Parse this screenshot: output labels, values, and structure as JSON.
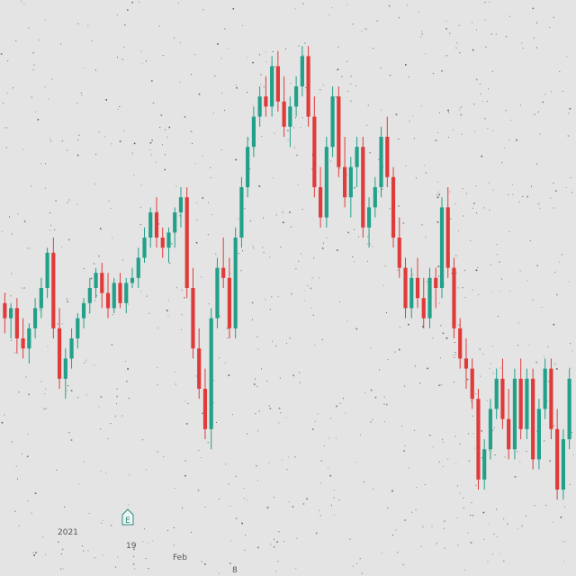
{
  "colors": {
    "up": "#22a08a",
    "down": "#e03b3b",
    "background": "#e4e4e4",
    "noise": "#3a3a3a"
  },
  "chart_data": {
    "type": "candlestick",
    "title": "",
    "xlabel": "",
    "ylabel": "",
    "ylim": [
      0,
      100
    ],
    "grid": false,
    "legend": "none",
    "x_tick_labels": [
      "2021",
      "19",
      "Feb",
      "8"
    ],
    "event_marker": {
      "glyph": "E",
      "label_near": "19"
    },
    "candles": [
      {
        "o": 47,
        "h": 49,
        "l": 41,
        "c": 44
      },
      {
        "o": 44,
        "h": 47,
        "l": 40,
        "c": 46
      },
      {
        "o": 46,
        "h": 48,
        "l": 37,
        "c": 40
      },
      {
        "o": 40,
        "h": 44,
        "l": 36,
        "c": 38
      },
      {
        "o": 38,
        "h": 43,
        "l": 35,
        "c": 42
      },
      {
        "o": 42,
        "h": 48,
        "l": 40,
        "c": 46
      },
      {
        "o": 46,
        "h": 52,
        "l": 44,
        "c": 50
      },
      {
        "o": 50,
        "h": 58,
        "l": 48,
        "c": 57
      },
      {
        "o": 57,
        "h": 60,
        "l": 40,
        "c": 42
      },
      {
        "o": 42,
        "h": 46,
        "l": 30,
        "c": 32
      },
      {
        "o": 32,
        "h": 38,
        "l": 28,
        "c": 36
      },
      {
        "o": 36,
        "h": 42,
        "l": 34,
        "c": 40
      },
      {
        "o": 40,
        "h": 45,
        "l": 38,
        "c": 44
      },
      {
        "o": 44,
        "h": 48,
        "l": 42,
        "c": 47
      },
      {
        "o": 47,
        "h": 52,
        "l": 45,
        "c": 50
      },
      {
        "o": 50,
        "h": 54,
        "l": 48,
        "c": 53
      },
      {
        "o": 53,
        "h": 55,
        "l": 46,
        "c": 49
      },
      {
        "o": 49,
        "h": 53,
        "l": 44,
        "c": 46
      },
      {
        "o": 46,
        "h": 52,
        "l": 45,
        "c": 51
      },
      {
        "o": 51,
        "h": 53,
        "l": 46,
        "c": 47
      },
      {
        "o": 47,
        "h": 52,
        "l": 45,
        "c": 51
      },
      {
        "o": 51,
        "h": 54,
        "l": 50,
        "c": 52
      },
      {
        "o": 52,
        "h": 58,
        "l": 50,
        "c": 56
      },
      {
        "o": 56,
        "h": 62,
        "l": 55,
        "c": 60
      },
      {
        "o": 60,
        "h": 66,
        "l": 58,
        "c": 65
      },
      {
        "o": 65,
        "h": 68,
        "l": 58,
        "c": 60
      },
      {
        "o": 60,
        "h": 62,
        "l": 56,
        "c": 58
      },
      {
        "o": 58,
        "h": 62,
        "l": 55,
        "c": 61
      },
      {
        "o": 61,
        "h": 66,
        "l": 58,
        "c": 65
      },
      {
        "o": 65,
        "h": 70,
        "l": 62,
        "c": 68
      },
      {
        "o": 68,
        "h": 70,
        "l": 48,
        "c": 50
      },
      {
        "o": 50,
        "h": 54,
        "l": 36,
        "c": 38
      },
      {
        "o": 38,
        "h": 42,
        "l": 28,
        "c": 30
      },
      {
        "o": 30,
        "h": 34,
        "l": 20,
        "c": 22
      },
      {
        "o": 22,
        "h": 46,
        "l": 18,
        "c": 44
      },
      {
        "o": 44,
        "h": 56,
        "l": 42,
        "c": 54
      },
      {
        "o": 54,
        "h": 60,
        "l": 50,
        "c": 52
      },
      {
        "o": 52,
        "h": 56,
        "l": 40,
        "c": 42
      },
      {
        "o": 42,
        "h": 62,
        "l": 40,
        "c": 60
      },
      {
        "o": 60,
        "h": 72,
        "l": 58,
        "c": 70
      },
      {
        "o": 70,
        "h": 80,
        "l": 68,
        "c": 78
      },
      {
        "o": 78,
        "h": 86,
        "l": 76,
        "c": 84
      },
      {
        "o": 84,
        "h": 90,
        "l": 82,
        "c": 88
      },
      {
        "o": 88,
        "h": 92,
        "l": 84,
        "c": 86
      },
      {
        "o": 86,
        "h": 96,
        "l": 84,
        "c": 94
      },
      {
        "o": 94,
        "h": 97,
        "l": 85,
        "c": 87
      },
      {
        "o": 87,
        "h": 92,
        "l": 80,
        "c": 82
      },
      {
        "o": 82,
        "h": 88,
        "l": 78,
        "c": 86
      },
      {
        "o": 86,
        "h": 92,
        "l": 84,
        "c": 90
      },
      {
        "o": 90,
        "h": 98,
        "l": 88,
        "c": 96
      },
      {
        "o": 96,
        "h": 98,
        "l": 82,
        "c": 84
      },
      {
        "o": 84,
        "h": 88,
        "l": 68,
        "c": 70
      },
      {
        "o": 70,
        "h": 74,
        "l": 62,
        "c": 64
      },
      {
        "o": 64,
        "h": 80,
        "l": 62,
        "c": 78
      },
      {
        "o": 78,
        "h": 90,
        "l": 76,
        "c": 88
      },
      {
        "o": 88,
        "h": 90,
        "l": 72,
        "c": 74
      },
      {
        "o": 74,
        "h": 80,
        "l": 66,
        "c": 68
      },
      {
        "o": 68,
        "h": 76,
        "l": 64,
        "c": 74
      },
      {
        "o": 74,
        "h": 80,
        "l": 70,
        "c": 78
      },
      {
        "o": 78,
        "h": 80,
        "l": 60,
        "c": 62
      },
      {
        "o": 62,
        "h": 68,
        "l": 58,
        "c": 66
      },
      {
        "o": 66,
        "h": 72,
        "l": 64,
        "c": 70
      },
      {
        "o": 70,
        "h": 82,
        "l": 68,
        "c": 80
      },
      {
        "o": 80,
        "h": 84,
        "l": 70,
        "c": 72
      },
      {
        "o": 72,
        "h": 74,
        "l": 58,
        "c": 60
      },
      {
        "o": 60,
        "h": 64,
        "l": 52,
        "c": 54
      },
      {
        "o": 54,
        "h": 56,
        "l": 44,
        "c": 46
      },
      {
        "o": 46,
        "h": 54,
        "l": 44,
        "c": 52
      },
      {
        "o": 52,
        "h": 56,
        "l": 46,
        "c": 48
      },
      {
        "o": 48,
        "h": 52,
        "l": 42,
        "c": 44
      },
      {
        "o": 44,
        "h": 54,
        "l": 42,
        "c": 52
      },
      {
        "o": 52,
        "h": 54,
        "l": 46,
        "c": 50
      },
      {
        "o": 50,
        "h": 68,
        "l": 48,
        "c": 66
      },
      {
        "o": 66,
        "h": 70,
        "l": 52,
        "c": 54
      },
      {
        "o": 54,
        "h": 56,
        "l": 40,
        "c": 42
      },
      {
        "o": 42,
        "h": 44,
        "l": 34,
        "c": 36
      },
      {
        "o": 36,
        "h": 40,
        "l": 30,
        "c": 34
      },
      {
        "o": 34,
        "h": 36,
        "l": 26,
        "c": 28
      },
      {
        "o": 28,
        "h": 30,
        "l": 10,
        "c": 12
      },
      {
        "o": 12,
        "h": 20,
        "l": 10,
        "c": 18
      },
      {
        "o": 18,
        "h": 28,
        "l": 16,
        "c": 26
      },
      {
        "o": 26,
        "h": 34,
        "l": 24,
        "c": 32
      },
      {
        "o": 32,
        "h": 36,
        "l": 22,
        "c": 24
      },
      {
        "o": 24,
        "h": 30,
        "l": 16,
        "c": 18
      },
      {
        "o": 18,
        "h": 34,
        "l": 16,
        "c": 32
      },
      {
        "o": 32,
        "h": 36,
        "l": 20,
        "c": 22
      },
      {
        "o": 22,
        "h": 34,
        "l": 20,
        "c": 32
      },
      {
        "o": 32,
        "h": 34,
        "l": 14,
        "c": 16
      },
      {
        "o": 16,
        "h": 28,
        "l": 14,
        "c": 26
      },
      {
        "o": 26,
        "h": 36,
        "l": 24,
        "c": 34
      },
      {
        "o": 34,
        "h": 36,
        "l": 20,
        "c": 22
      },
      {
        "o": 22,
        "h": 26,
        "l": 8,
        "c": 10
      },
      {
        "o": 10,
        "h": 22,
        "l": 8,
        "c": 20
      },
      {
        "o": 20,
        "h": 34,
        "l": 18,
        "c": 32
      }
    ]
  }
}
